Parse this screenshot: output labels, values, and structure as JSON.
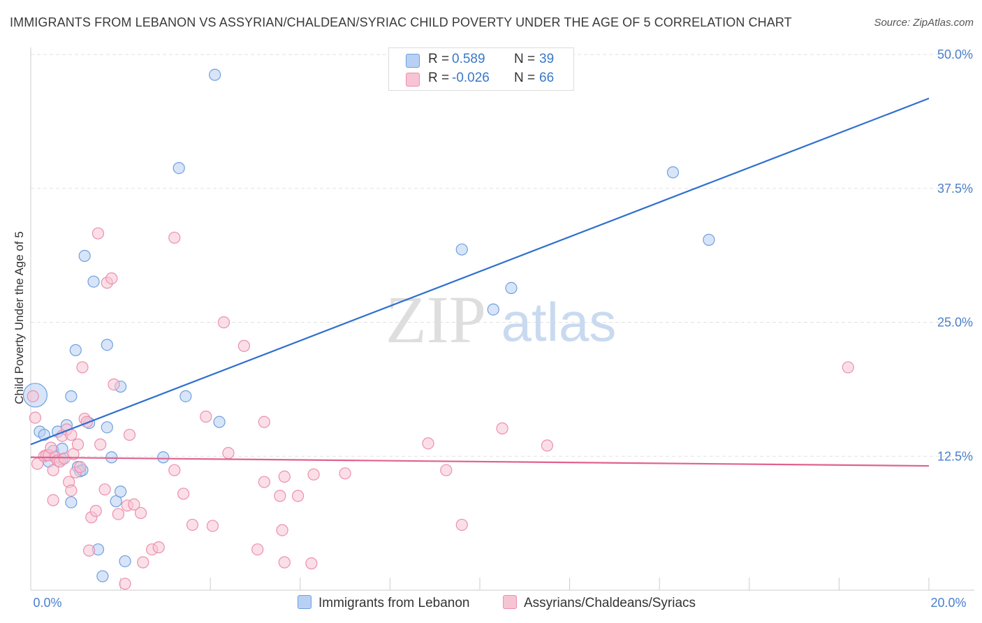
{
  "title": "IMMIGRANTS FROM LEBANON VS ASSYRIAN/CHALDEAN/SYRIAC CHILD POVERTY UNDER THE AGE OF 5 CORRELATION CHART",
  "source": "Source: ZipAtlas.com",
  "watermark": {
    "zip": "ZIP",
    "atlas": "atlas"
  },
  "legend": {
    "r_label": "R =",
    "n_label": "N =",
    "rows": [
      {
        "r": "0.589",
        "n": "39"
      },
      {
        "r": "-0.026",
        "n": "66"
      }
    ]
  },
  "chart_data": {
    "type": "scatter",
    "title": "IMMIGRANTS FROM LEBANON VS ASSYRIAN/CHALDEAN/SYRIAC CHILD POVERTY UNDER THE AGE OF 5 CORRELATION CHART",
    "xlabel": "",
    "ylabel": "Child Poverty Under the Age of 5",
    "xlim": [
      0,
      20
    ],
    "ylim": [
      0,
      50
    ],
    "x_tick_labels": [
      "0.0%",
      "20.0%"
    ],
    "y_ticks": [
      12.5,
      25.0,
      37.5,
      50.0
    ],
    "y_tick_labels": [
      "12.5%",
      "25.0%",
      "37.5%",
      "50.0%"
    ],
    "grid": "horizontal dashed",
    "legend_position": "top-center and bottom",
    "series": [
      {
        "name": "Immigrants from Lebanon",
        "color": "#6f9fe0",
        "fill": "#b8d0f3",
        "trend_color": "#2f6fcf",
        "r": 0.589,
        "n": 39,
        "trend": {
          "x": [
            0,
            20
          ],
          "y": [
            13.6,
            45.9
          ]
        },
        "points": [
          {
            "x": 0.1,
            "y": 18.2,
            "big": true
          },
          {
            "x": 0.2,
            "y": 14.8
          },
          {
            "x": 0.3,
            "y": 14.5
          },
          {
            "x": 0.4,
            "y": 12.0
          },
          {
            "x": 0.5,
            "y": 13.0
          },
          {
            "x": 0.6,
            "y": 14.8
          },
          {
            "x": 0.7,
            "y": 12.2
          },
          {
            "x": 0.7,
            "y": 13.2
          },
          {
            "x": 0.8,
            "y": 15.4
          },
          {
            "x": 0.9,
            "y": 18.1
          },
          {
            "x": 0.9,
            "y": 8.2
          },
          {
            "x": 1.0,
            "y": 22.4
          },
          {
            "x": 1.05,
            "y": 11.5
          },
          {
            "x": 1.1,
            "y": 11.1
          },
          {
            "x": 1.15,
            "y": 11.2
          },
          {
            "x": 1.2,
            "y": 31.2
          },
          {
            "x": 1.3,
            "y": 15.6
          },
          {
            "x": 1.4,
            "y": 28.8
          },
          {
            "x": 1.5,
            "y": 3.8
          },
          {
            "x": 1.6,
            "y": 1.3
          },
          {
            "x": 1.7,
            "y": 15.2
          },
          {
            "x": 1.7,
            "y": 22.9
          },
          {
            "x": 1.8,
            "y": 12.4
          },
          {
            "x": 1.9,
            "y": 8.3
          },
          {
            "x": 2.0,
            "y": 9.2
          },
          {
            "x": 2.0,
            "y": 19.0
          },
          {
            "x": 2.1,
            "y": 2.7
          },
          {
            "x": 2.95,
            "y": 12.4
          },
          {
            "x": 3.3,
            "y": 39.4
          },
          {
            "x": 3.45,
            "y": 18.1
          },
          {
            "x": 4.1,
            "y": 48.1
          },
          {
            "x": 4.2,
            "y": 15.7
          },
          {
            "x": 9.6,
            "y": 31.8
          },
          {
            "x": 10.3,
            "y": 26.2
          },
          {
            "x": 10.7,
            "y": 28.2
          },
          {
            "x": 14.3,
            "y": 39.0
          },
          {
            "x": 15.1,
            "y": 32.7
          }
        ]
      },
      {
        "name": "Assyrians/Chaldeans/Syriacs",
        "color": "#ec8fae",
        "fill": "#f7c4d4",
        "trend_color": "#e0628e",
        "r": -0.026,
        "n": 66,
        "trend": {
          "x": [
            0,
            20
          ],
          "y": [
            12.4,
            11.6
          ]
        },
        "points": [
          {
            "x": 0.05,
            "y": 18.1
          },
          {
            "x": 0.1,
            "y": 16.1
          },
          {
            "x": 0.15,
            "y": 11.8
          },
          {
            "x": 0.3,
            "y": 12.5
          },
          {
            "x": 0.35,
            "y": 12.6
          },
          {
            "x": 0.4,
            "y": 12.6
          },
          {
            "x": 0.45,
            "y": 13.3
          },
          {
            "x": 0.5,
            "y": 11.2
          },
          {
            "x": 0.5,
            "y": 8.4
          },
          {
            "x": 0.55,
            "y": 12.4
          },
          {
            "x": 0.6,
            "y": 12.1
          },
          {
            "x": 0.65,
            "y": 12.0
          },
          {
            "x": 0.7,
            "y": 14.4
          },
          {
            "x": 0.75,
            "y": 12.3
          },
          {
            "x": 0.8,
            "y": 15.0
          },
          {
            "x": 0.85,
            "y": 10.1
          },
          {
            "x": 0.9,
            "y": 9.3
          },
          {
            "x": 0.9,
            "y": 14.5
          },
          {
            "x": 0.95,
            "y": 12.7
          },
          {
            "x": 1.0,
            "y": 11.0
          },
          {
            "x": 1.05,
            "y": 13.6
          },
          {
            "x": 1.1,
            "y": 11.5
          },
          {
            "x": 1.15,
            "y": 20.8
          },
          {
            "x": 1.2,
            "y": 16.0
          },
          {
            "x": 1.25,
            "y": 15.7
          },
          {
            "x": 1.3,
            "y": 3.7
          },
          {
            "x": 1.35,
            "y": 6.8
          },
          {
            "x": 1.45,
            "y": 7.4
          },
          {
            "x": 1.5,
            "y": 33.3
          },
          {
            "x": 1.55,
            "y": 13.6
          },
          {
            "x": 1.65,
            "y": 9.4
          },
          {
            "x": 1.7,
            "y": 28.7
          },
          {
            "x": 1.8,
            "y": 29.1
          },
          {
            "x": 1.85,
            "y": 19.2
          },
          {
            "x": 1.95,
            "y": 7.1
          },
          {
            "x": 2.1,
            "y": 0.6
          },
          {
            "x": 2.15,
            "y": 7.9
          },
          {
            "x": 2.2,
            "y": 14.5
          },
          {
            "x": 2.3,
            "y": 8.0
          },
          {
            "x": 2.45,
            "y": 7.2
          },
          {
            "x": 2.5,
            "y": 2.6
          },
          {
            "x": 2.7,
            "y": 3.8
          },
          {
            "x": 2.85,
            "y": 4.0
          },
          {
            "x": 3.2,
            "y": 32.9
          },
          {
            "x": 3.2,
            "y": 11.2
          },
          {
            "x": 3.4,
            "y": 9.0
          },
          {
            "x": 3.6,
            "y": 6.1
          },
          {
            "x": 3.9,
            "y": 16.2
          },
          {
            "x": 4.05,
            "y": 6.0
          },
          {
            "x": 4.3,
            "y": 25.0
          },
          {
            "x": 4.4,
            "y": 12.8
          },
          {
            "x": 4.75,
            "y": 22.8
          },
          {
            "x": 5.05,
            "y": 3.8
          },
          {
            "x": 5.2,
            "y": 15.7
          },
          {
            "x": 5.2,
            "y": 10.1
          },
          {
            "x": 5.55,
            "y": 8.8
          },
          {
            "x": 5.6,
            "y": 5.6
          },
          {
            "x": 5.65,
            "y": 2.6
          },
          {
            "x": 5.65,
            "y": 10.6
          },
          {
            "x": 5.95,
            "y": 8.8
          },
          {
            "x": 6.25,
            "y": 2.5
          },
          {
            "x": 6.3,
            "y": 10.8
          },
          {
            "x": 7.0,
            "y": 10.9
          },
          {
            "x": 8.85,
            "y": 13.7
          },
          {
            "x": 9.25,
            "y": 11.2
          },
          {
            "x": 9.6,
            "y": 6.1
          },
          {
            "x": 10.5,
            "y": 15.1
          },
          {
            "x": 11.5,
            "y": 13.5
          },
          {
            "x": 18.2,
            "y": 20.8
          }
        ]
      }
    ]
  }
}
